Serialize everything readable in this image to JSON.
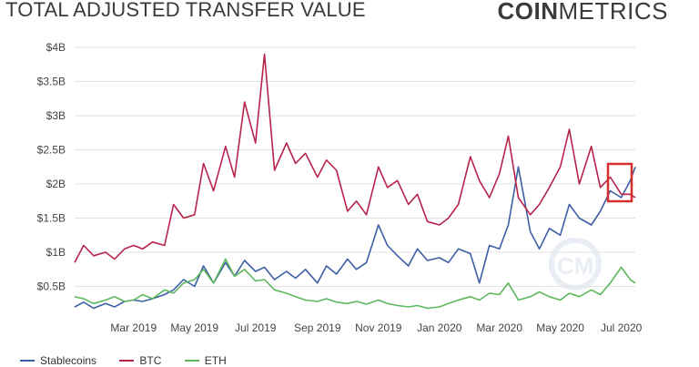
{
  "header": {
    "title": "TOTAL ADJUSTED TRANSFER VALUE",
    "brand_bold": "COIN",
    "brand_light": "METRICS"
  },
  "colors": {
    "Stablecoins": "#3d5fa6",
    "BTC": "#b8234a",
    "ETH": "#5cb85c",
    "highlight": "#d62f2f",
    "grid": "#e2e2e2"
  },
  "chart_data": {
    "type": "line",
    "title": "TOTAL ADJUSTED TRANSFER VALUE",
    "ylim": [
      0,
      4000000000
    ],
    "y_ticks": [
      {
        "value": 500000000,
        "label": "$0.5B"
      },
      {
        "value": 1000000000,
        "label": "$1B"
      },
      {
        "value": 1500000000,
        "label": "$1.5B"
      },
      {
        "value": 2000000000,
        "label": "$2B"
      },
      {
        "value": 2500000000,
        "label": "$2.5B"
      },
      {
        "value": 3000000000,
        "label": "$3B"
      },
      {
        "value": 3500000000,
        "label": "$3.5B"
      },
      {
        "value": 4000000000,
        "label": "$4B"
      }
    ],
    "x_range": [
      "2019-01-01",
      "2020-07-15"
    ],
    "x_ticks": [
      {
        "date": "2019-03-01",
        "label": "Mar 2019"
      },
      {
        "date": "2019-05-01",
        "label": "May 2019"
      },
      {
        "date": "2019-07-01",
        "label": "Jul 2019"
      },
      {
        "date": "2019-09-01",
        "label": "Sep 2019"
      },
      {
        "date": "2019-11-01",
        "label": "Nov 2019"
      },
      {
        "date": "2020-01-01",
        "label": "Jan 2020"
      },
      {
        "date": "2020-03-01",
        "label": "Mar 2020"
      },
      {
        "date": "2020-05-01",
        "label": "May 2020"
      },
      {
        "date": "2020-07-01",
        "label": "Jul 2020"
      }
    ],
    "grid": "horizontal",
    "legend_position": "bottom-left",
    "series": [
      {
        "name": "Stablecoins",
        "points": [
          [
            "2019-01-01",
            0.2
          ],
          [
            "2019-01-10",
            0.27
          ],
          [
            "2019-01-20",
            0.18
          ],
          [
            "2019-02-01",
            0.25
          ],
          [
            "2019-02-10",
            0.2
          ],
          [
            "2019-02-20",
            0.28
          ],
          [
            "2019-03-01",
            0.3
          ],
          [
            "2019-03-10",
            0.28
          ],
          [
            "2019-03-20",
            0.32
          ],
          [
            "2019-04-01",
            0.38
          ],
          [
            "2019-04-10",
            0.45
          ],
          [
            "2019-04-20",
            0.6
          ],
          [
            "2019-05-01",
            0.5
          ],
          [
            "2019-05-10",
            0.8
          ],
          [
            "2019-05-20",
            0.55
          ],
          [
            "2019-06-01",
            0.85
          ],
          [
            "2019-06-10",
            0.65
          ],
          [
            "2019-06-20",
            0.88
          ],
          [
            "2019-07-01",
            0.72
          ],
          [
            "2019-07-10",
            0.78
          ],
          [
            "2019-07-20",
            0.6
          ],
          [
            "2019-08-01",
            0.72
          ],
          [
            "2019-08-10",
            0.62
          ],
          [
            "2019-08-20",
            0.75
          ],
          [
            "2019-09-01",
            0.55
          ],
          [
            "2019-09-10",
            0.8
          ],
          [
            "2019-09-20",
            0.68
          ],
          [
            "2019-10-01",
            0.9
          ],
          [
            "2019-10-10",
            0.75
          ],
          [
            "2019-10-20",
            0.85
          ],
          [
            "2019-11-01",
            1.4
          ],
          [
            "2019-11-10",
            1.1
          ],
          [
            "2019-11-20",
            0.95
          ],
          [
            "2019-12-01",
            0.8
          ],
          [
            "2019-12-10",
            1.05
          ],
          [
            "2019-12-20",
            0.88
          ],
          [
            "2020-01-01",
            0.92
          ],
          [
            "2020-01-10",
            0.85
          ],
          [
            "2020-01-20",
            1.05
          ],
          [
            "2020-02-01",
            0.98
          ],
          [
            "2020-02-10",
            0.55
          ],
          [
            "2020-02-20",
            1.1
          ],
          [
            "2020-03-01",
            1.05
          ],
          [
            "2020-03-10",
            1.4
          ],
          [
            "2020-03-20",
            2.25
          ],
          [
            "2020-04-01",
            1.3
          ],
          [
            "2020-04-10",
            1.05
          ],
          [
            "2020-04-20",
            1.35
          ],
          [
            "2020-05-01",
            1.25
          ],
          [
            "2020-05-10",
            1.7
          ],
          [
            "2020-05-20",
            1.5
          ],
          [
            "2020-06-01",
            1.4
          ],
          [
            "2020-06-10",
            1.6
          ],
          [
            "2020-06-20",
            1.9
          ],
          [
            "2020-07-01",
            1.8
          ],
          [
            "2020-07-10",
            2.05
          ],
          [
            "2020-07-15",
            2.25
          ]
        ]
      },
      {
        "name": "BTC",
        "points": [
          [
            "2019-01-01",
            0.85
          ],
          [
            "2019-01-10",
            1.1
          ],
          [
            "2019-01-20",
            0.95
          ],
          [
            "2019-02-01",
            1.0
          ],
          [
            "2019-02-10",
            0.9
          ],
          [
            "2019-02-20",
            1.05
          ],
          [
            "2019-03-01",
            1.1
          ],
          [
            "2019-03-10",
            1.05
          ],
          [
            "2019-03-20",
            1.15
          ],
          [
            "2019-04-01",
            1.1
          ],
          [
            "2019-04-10",
            1.7
          ],
          [
            "2019-04-20",
            1.5
          ],
          [
            "2019-05-01",
            1.55
          ],
          [
            "2019-05-10",
            2.3
          ],
          [
            "2019-05-20",
            1.9
          ],
          [
            "2019-06-01",
            2.55
          ],
          [
            "2019-06-10",
            2.1
          ],
          [
            "2019-06-20",
            3.2
          ],
          [
            "2019-07-01",
            2.6
          ],
          [
            "2019-07-10",
            3.9
          ],
          [
            "2019-07-20",
            2.2
          ],
          [
            "2019-08-01",
            2.6
          ],
          [
            "2019-08-10",
            2.3
          ],
          [
            "2019-08-20",
            2.45
          ],
          [
            "2019-09-01",
            2.1
          ],
          [
            "2019-09-10",
            2.35
          ],
          [
            "2019-09-20",
            2.2
          ],
          [
            "2019-10-01",
            1.6
          ],
          [
            "2019-10-10",
            1.75
          ],
          [
            "2019-10-20",
            1.55
          ],
          [
            "2019-11-01",
            2.25
          ],
          [
            "2019-11-10",
            1.95
          ],
          [
            "2019-11-20",
            2.05
          ],
          [
            "2019-12-01",
            1.7
          ],
          [
            "2019-12-10",
            1.85
          ],
          [
            "2019-12-20",
            1.45
          ],
          [
            "2020-01-01",
            1.4
          ],
          [
            "2020-01-10",
            1.5
          ],
          [
            "2020-01-20",
            1.7
          ],
          [
            "2020-02-01",
            2.4
          ],
          [
            "2020-02-10",
            2.05
          ],
          [
            "2020-02-20",
            1.8
          ],
          [
            "2020-03-01",
            2.15
          ],
          [
            "2020-03-10",
            2.7
          ],
          [
            "2020-03-20",
            1.8
          ],
          [
            "2020-04-01",
            1.55
          ],
          [
            "2020-04-10",
            1.7
          ],
          [
            "2020-04-20",
            1.95
          ],
          [
            "2020-05-01",
            2.25
          ],
          [
            "2020-05-10",
            2.8
          ],
          [
            "2020-05-20",
            2.0
          ],
          [
            "2020-06-01",
            2.55
          ],
          [
            "2020-06-10",
            1.95
          ],
          [
            "2020-06-20",
            2.1
          ],
          [
            "2020-07-01",
            1.85
          ],
          [
            "2020-07-10",
            1.85
          ],
          [
            "2020-07-15",
            1.8
          ]
        ]
      },
      {
        "name": "ETH",
        "points": [
          [
            "2019-01-01",
            0.35
          ],
          [
            "2019-01-10",
            0.32
          ],
          [
            "2019-01-20",
            0.25
          ],
          [
            "2019-02-01",
            0.3
          ],
          [
            "2019-02-10",
            0.35
          ],
          [
            "2019-02-20",
            0.28
          ],
          [
            "2019-03-01",
            0.3
          ],
          [
            "2019-03-10",
            0.38
          ],
          [
            "2019-03-20",
            0.32
          ],
          [
            "2019-04-01",
            0.45
          ],
          [
            "2019-04-10",
            0.4
          ],
          [
            "2019-04-20",
            0.55
          ],
          [
            "2019-05-01",
            0.6
          ],
          [
            "2019-05-10",
            0.75
          ],
          [
            "2019-05-20",
            0.55
          ],
          [
            "2019-06-01",
            0.9
          ],
          [
            "2019-06-10",
            0.65
          ],
          [
            "2019-06-20",
            0.75
          ],
          [
            "2019-07-01",
            0.58
          ],
          [
            "2019-07-10",
            0.6
          ],
          [
            "2019-07-20",
            0.45
          ],
          [
            "2019-08-01",
            0.4
          ],
          [
            "2019-08-10",
            0.35
          ],
          [
            "2019-08-20",
            0.3
          ],
          [
            "2019-09-01",
            0.28
          ],
          [
            "2019-09-10",
            0.32
          ],
          [
            "2019-09-20",
            0.27
          ],
          [
            "2019-10-01",
            0.25
          ],
          [
            "2019-10-10",
            0.28
          ],
          [
            "2019-10-20",
            0.24
          ],
          [
            "2019-11-01",
            0.3
          ],
          [
            "2019-11-10",
            0.25
          ],
          [
            "2019-11-20",
            0.22
          ],
          [
            "2019-12-01",
            0.2
          ],
          [
            "2019-12-10",
            0.22
          ],
          [
            "2019-12-20",
            0.18
          ],
          [
            "2020-01-01",
            0.2
          ],
          [
            "2020-01-10",
            0.25
          ],
          [
            "2020-01-20",
            0.3
          ],
          [
            "2020-02-01",
            0.35
          ],
          [
            "2020-02-10",
            0.3
          ],
          [
            "2020-02-20",
            0.4
          ],
          [
            "2020-03-01",
            0.38
          ],
          [
            "2020-03-10",
            0.55
          ],
          [
            "2020-03-20",
            0.3
          ],
          [
            "2020-04-01",
            0.35
          ],
          [
            "2020-04-10",
            0.42
          ],
          [
            "2020-04-20",
            0.35
          ],
          [
            "2020-05-01",
            0.3
          ],
          [
            "2020-05-10",
            0.4
          ],
          [
            "2020-05-20",
            0.35
          ],
          [
            "2020-06-01",
            0.45
          ],
          [
            "2020-06-10",
            0.38
          ],
          [
            "2020-06-20",
            0.55
          ],
          [
            "2020-07-01",
            0.78
          ],
          [
            "2020-07-10",
            0.6
          ],
          [
            "2020-07-15",
            0.55
          ]
        ]
      }
    ],
    "value_unit": "billions USD"
  }
}
